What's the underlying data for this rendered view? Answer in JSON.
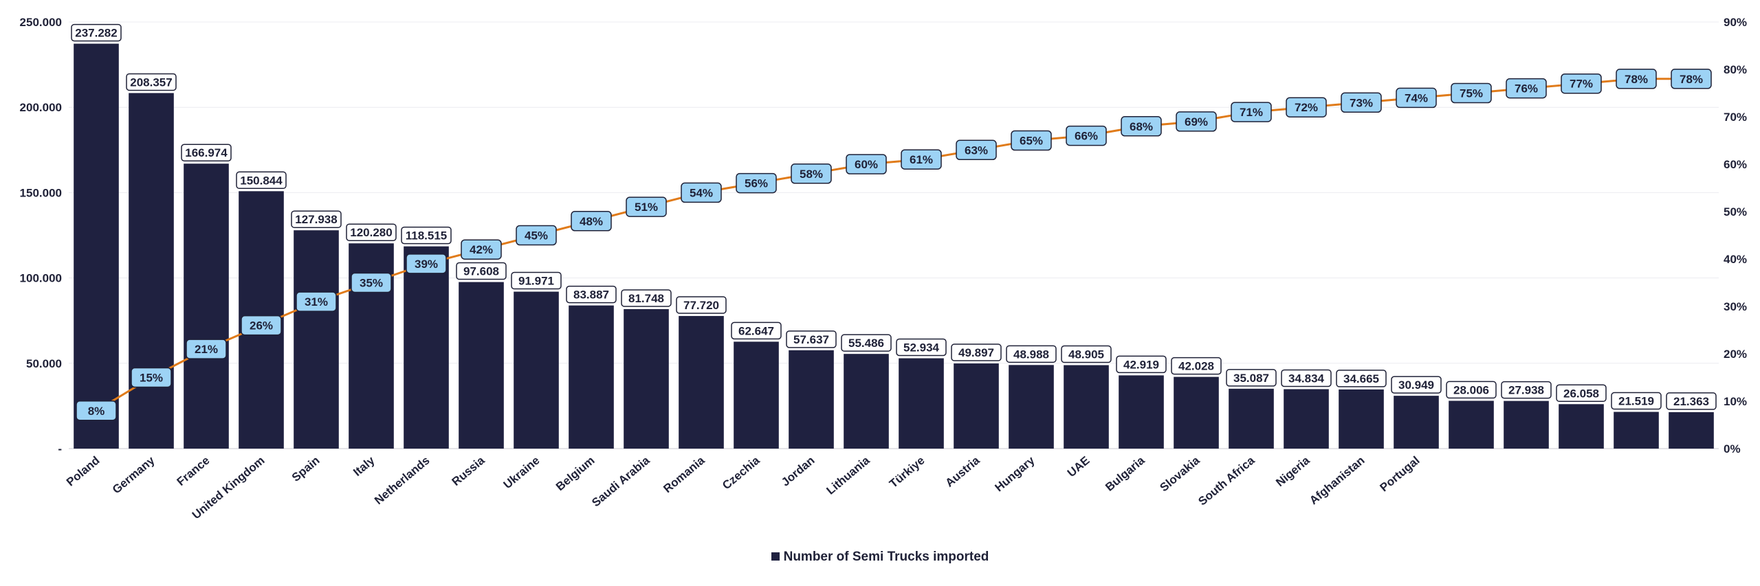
{
  "chart_data": {
    "type": "bar",
    "categories": [
      "Poland",
      "Germany",
      "France",
      "United Kingdom",
      "Spain",
      "Italy",
      "Netherlands",
      "Russia",
      "Ukraine",
      "Belgium",
      "Saudi Arabia",
      "Romania",
      "Czechia",
      "Jordan",
      "Lithuania",
      "Türkiye",
      "Austria",
      "Hungary",
      "UAE",
      "Bulgaria",
      "Slovakia",
      "South Africa",
      "Nigeria",
      "Afghanistan",
      "Portugal",
      "",
      "",
      "",
      "",
      ""
    ],
    "series": [
      {
        "name": "Number of Semi Trucks imported",
        "type": "bar",
        "axis": "left",
        "color": "#1f2140",
        "values": [
          237282,
          208357,
          166974,
          150844,
          127938,
          120280,
          118515,
          97608,
          91971,
          83887,
          81748,
          77720,
          62647,
          57637,
          55486,
          52934,
          49897,
          48988,
          48905,
          42919,
          42028,
          35087,
          34834,
          34665,
          30949,
          28006,
          27938,
          26058,
          21519,
          21363
        ],
        "labels": [
          "237.282",
          "208.357",
          "166.974",
          "150.844",
          "127.938",
          "120.280",
          "118.515",
          "97.608",
          "91.971",
          "83.887",
          "81.748",
          "77.720",
          "62.647",
          "57.637",
          "55.486",
          "52.934",
          "49.897",
          "48.988",
          "48.905",
          "42.919",
          "42.028",
          "35.087",
          "34.834",
          "34.665",
          "30.949",
          "28.006",
          "27.938",
          "26.058",
          "21.519",
          "21.363"
        ]
      },
      {
        "type": "line",
        "axis": "right",
        "color": "#e07b1a",
        "label_fill": "#9dd3f5",
        "values": [
          8,
          15,
          21,
          26,
          31,
          35,
          39,
          42,
          45,
          48,
          51,
          54,
          56,
          58,
          60,
          61,
          63,
          65,
          66,
          68,
          69,
          71,
          72,
          73,
          74,
          75,
          76,
          77,
          78,
          78
        ],
        "labels": [
          "8%",
          "15%",
          "21%",
          "26%",
          "31%",
          "35%",
          "39%",
          "42%",
          "45%",
          "48%",
          "51%",
          "54%",
          "56%",
          "58%",
          "60%",
          "61%",
          "63%",
          "65%",
          "66%",
          "68%",
          "69%",
          "71%",
          "72%",
          "73%",
          "74%",
          "75%",
          "76%",
          "77%",
          "78%",
          "78%"
        ]
      }
    ],
    "y_left": {
      "ylim": [
        0,
        250000
      ],
      "ticks": [
        0,
        50000,
        100000,
        150000,
        200000,
        250000
      ],
      "tick_labels": [
        "-",
        "50.000",
        "100.000",
        "150.000",
        "200.000",
        "250.000"
      ]
    },
    "y_right": {
      "ylim": [
        0,
        90
      ],
      "ticks": [
        0,
        10,
        20,
        30,
        40,
        50,
        60,
        70,
        80,
        90
      ],
      "tick_labels": [
        "0%",
        "10%",
        "20%",
        "30%",
        "40%",
        "50%",
        "60%",
        "70%",
        "80%",
        "90%"
      ]
    },
    "grid": true,
    "legend_position": "bottom"
  },
  "legend": {
    "label": "Number of Semi Trucks imported"
  }
}
